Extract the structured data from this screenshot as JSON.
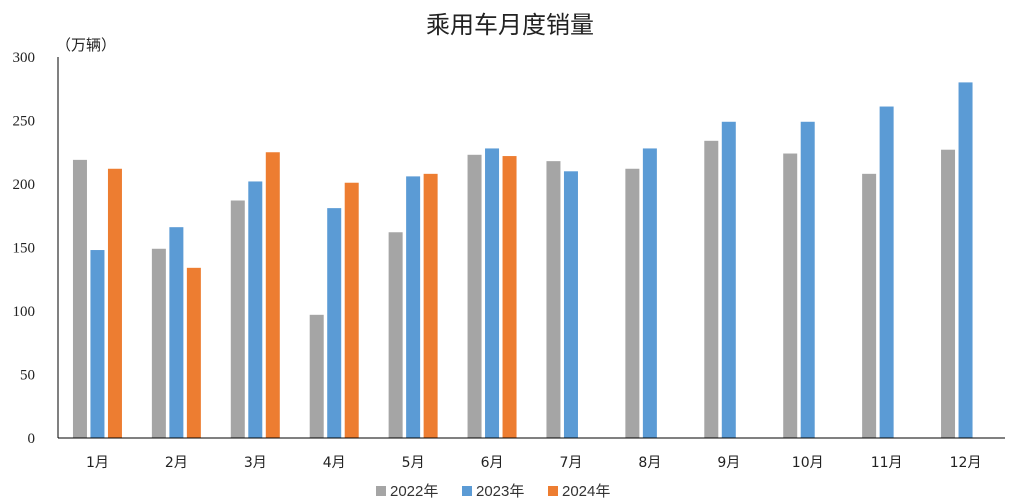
{
  "chart_data": {
    "type": "bar",
    "title": "乘用车月度销量",
    "ylabel": "（万辆）",
    "xlabel": "",
    "ylim": [
      0,
      300
    ],
    "yticks": [
      0,
      50,
      100,
      150,
      200,
      250,
      300
    ],
    "grid": false,
    "legend_position": "bottom",
    "categories": [
      "1月",
      "2月",
      "3月",
      "4月",
      "5月",
      "6月",
      "7月",
      "8月",
      "9月",
      "10月",
      "11月",
      "12月"
    ],
    "series": [
      {
        "name": "2022年",
        "color": "#a5a5a5",
        "values": [
          219,
          149,
          187,
          97,
          162,
          223,
          218,
          212,
          234,
          224,
          208,
          227
        ]
      },
      {
        "name": "2023年",
        "color": "#5b9bd5",
        "values": [
          148,
          166,
          202,
          181,
          206,
          228,
          210,
          228,
          249,
          249,
          261,
          280
        ]
      },
      {
        "name": "2024年",
        "color": "#ed7d31",
        "values": [
          212,
          134,
          225,
          201,
          208,
          222,
          null,
          null,
          null,
          null,
          null,
          null
        ]
      }
    ]
  }
}
